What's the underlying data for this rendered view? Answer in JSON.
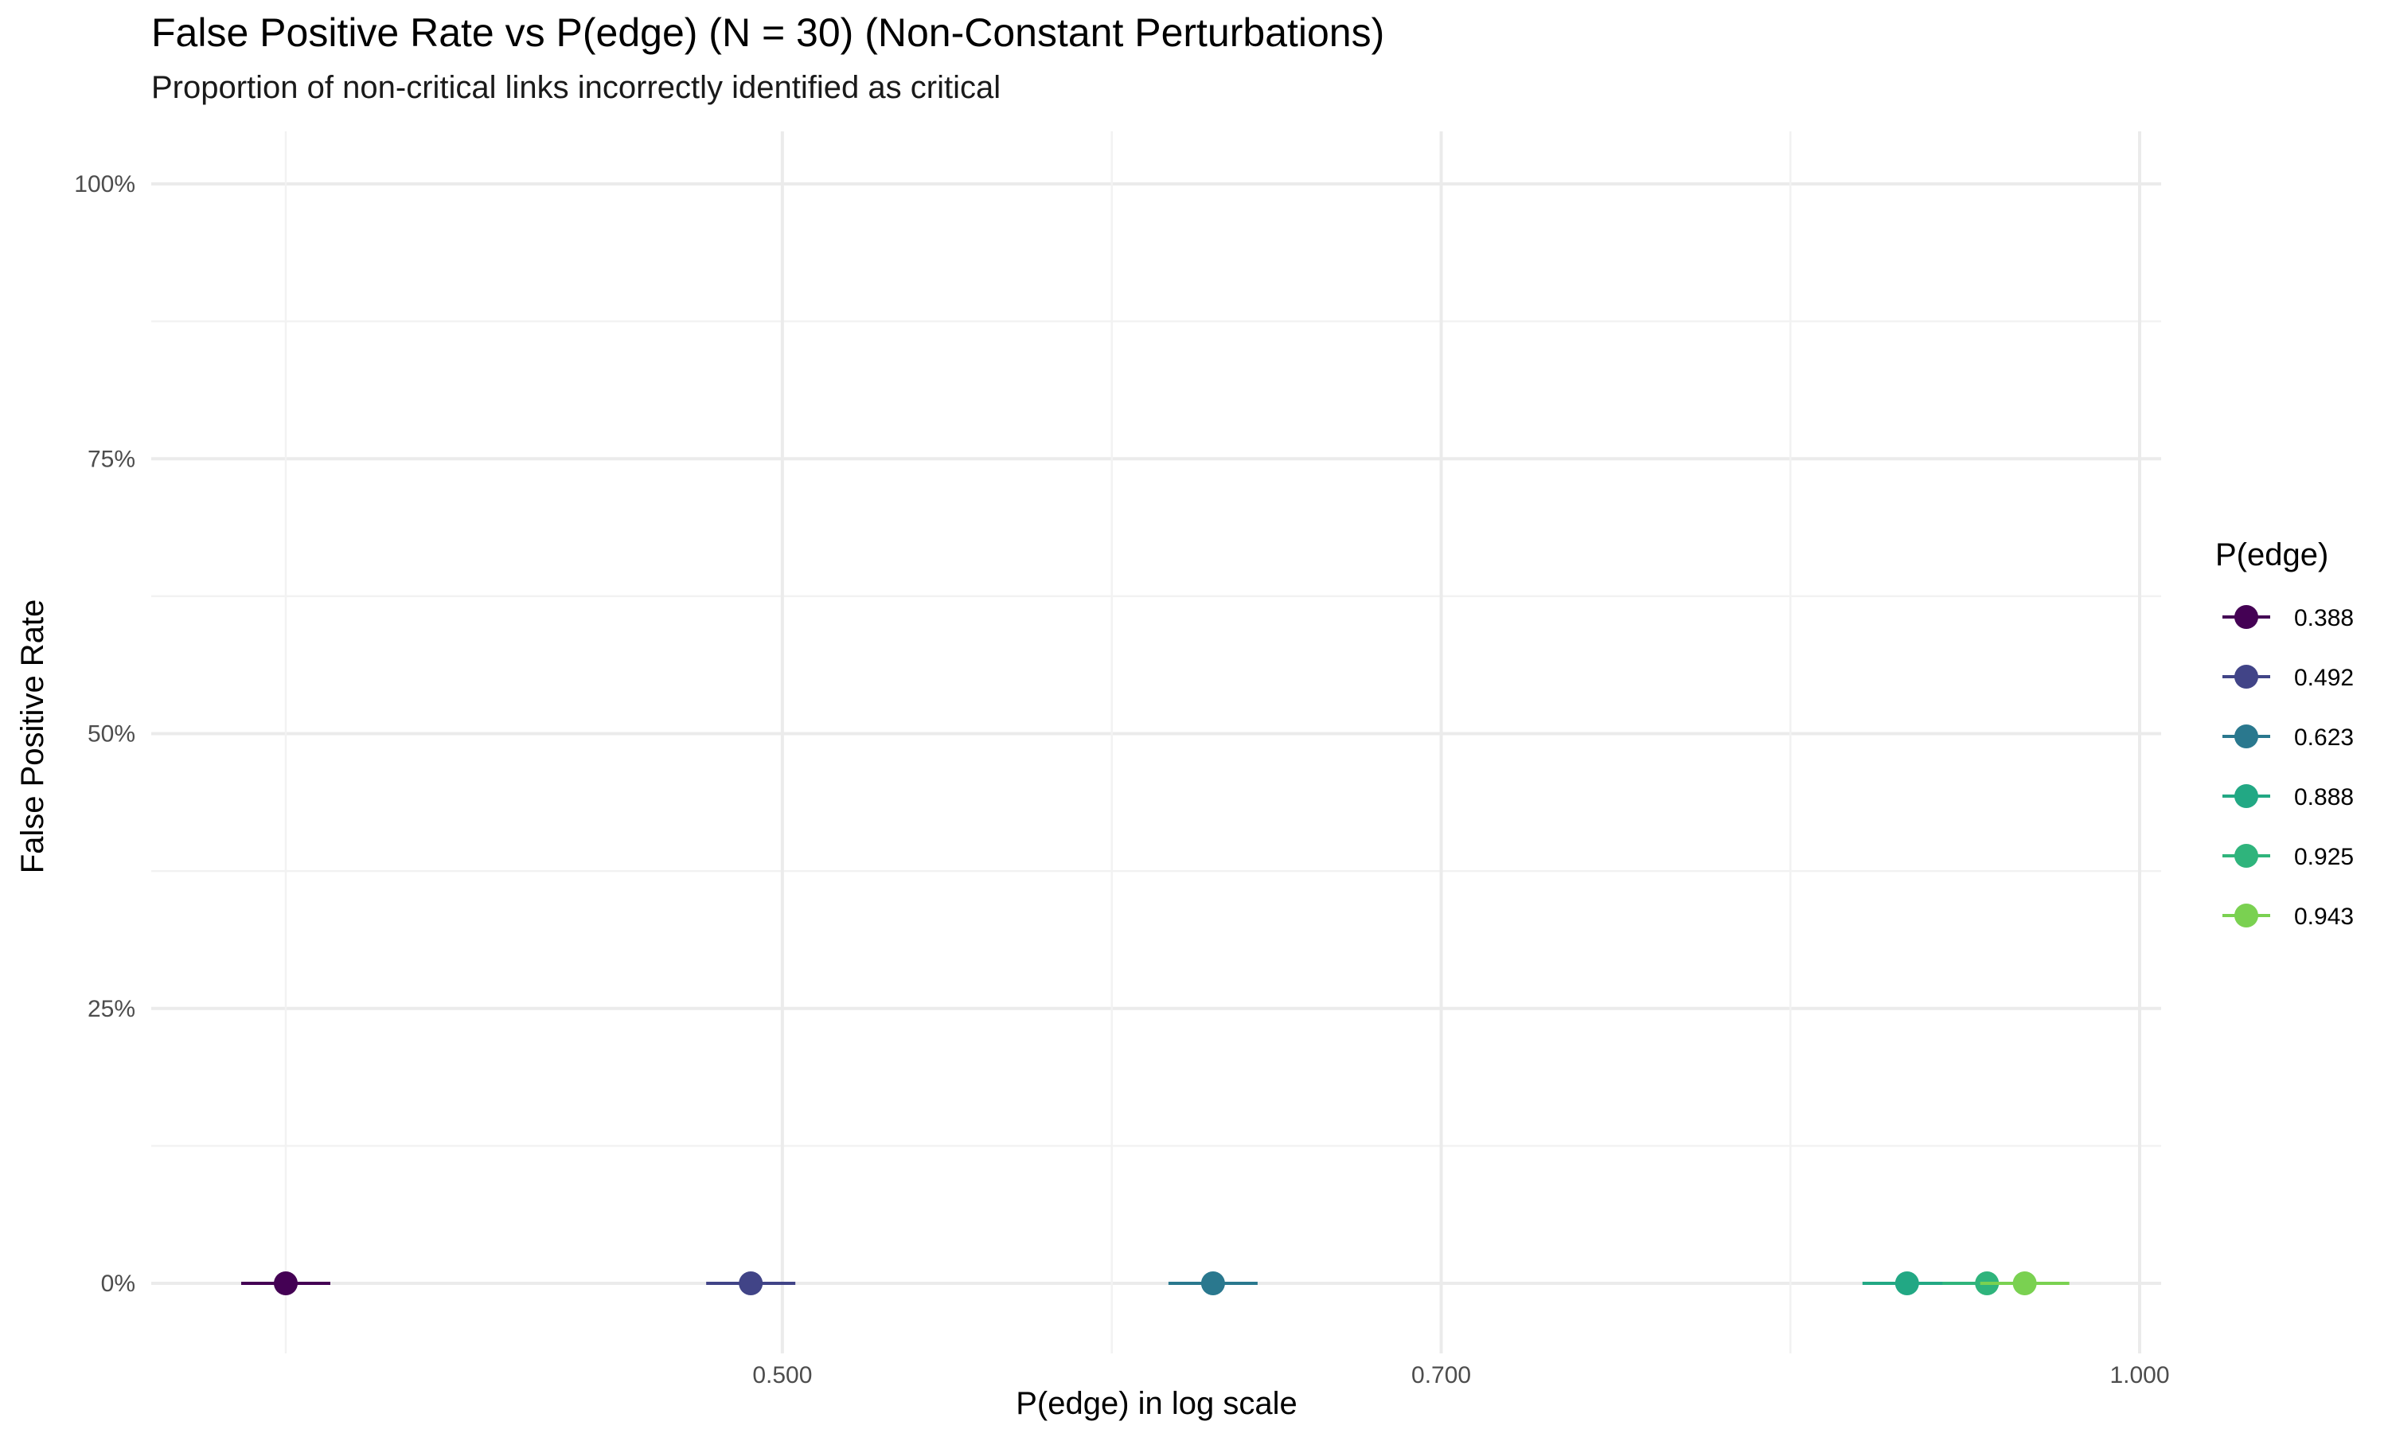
{
  "chart_data": {
    "type": "scatter",
    "title": "False Positive Rate vs P(edge) (N = 30) (Non-Constant Perturbations)",
    "subtitle": "Proportion of non-critical links incorrectly identified as critical",
    "xlabel": "P(edge) in log scale",
    "ylabel": "False Positive Rate",
    "x_scale": "log",
    "xlim": [
      0.388,
      0.943
    ],
    "ylim": [
      0,
      1
    ],
    "x_ticks": [
      0.5,
      0.7,
      1.0
    ],
    "x_tick_labels": [
      "0.500",
      "0.700",
      "1.000"
    ],
    "y_ticks": [
      0,
      0.25,
      0.5,
      0.75,
      1.0
    ],
    "y_tick_labels": [
      "0%",
      "25%",
      "50%",
      "75%",
      "100%"
    ],
    "grid": true,
    "legend": {
      "title": "P(edge)",
      "position": "right"
    },
    "series": [
      {
        "name": "0.388",
        "x": 0.388,
        "y": 0,
        "color": "#440154"
      },
      {
        "name": "0.492",
        "x": 0.492,
        "y": 0,
        "color": "#414487"
      },
      {
        "name": "0.623",
        "x": 0.623,
        "y": 0,
        "color": "#2a788e"
      },
      {
        "name": "0.888",
        "x": 0.888,
        "y": 0,
        "color": "#22a884"
      },
      {
        "name": "0.925",
        "x": 0.925,
        "y": 0,
        "color": "#2fb47c"
      },
      {
        "name": "0.943",
        "x": 0.943,
        "y": 0,
        "color": "#7ad151"
      }
    ]
  }
}
